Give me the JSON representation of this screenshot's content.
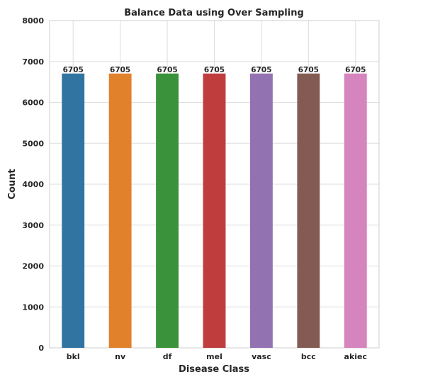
{
  "chart_data": {
    "type": "bar",
    "title": "Balance Data using Over Sampling",
    "xlabel": "Disease Class",
    "ylabel": "Count",
    "categories": [
      "bkl",
      "nv",
      "df",
      "mel",
      "vasc",
      "bcc",
      "akiec"
    ],
    "values": [
      6705,
      6705,
      6705,
      6705,
      6705,
      6705,
      6705
    ],
    "data_labels": [
      "6705",
      "6705",
      "6705",
      "6705",
      "6705",
      "6705",
      "6705"
    ],
    "ylim": [
      0,
      8000
    ],
    "yticks": [
      "0",
      "1000",
      "2000",
      "3000",
      "4000",
      "5000",
      "6000",
      "7000",
      "8000"
    ],
    "grid": true,
    "colors": [
      "#3274a1",
      "#e1812c",
      "#3a923a",
      "#c03d3e",
      "#9372b2",
      "#845b53",
      "#d684bd"
    ]
  }
}
